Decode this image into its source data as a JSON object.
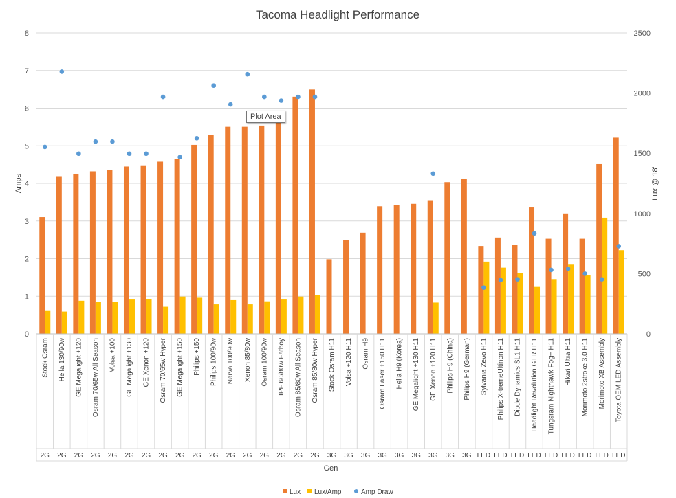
{
  "chart_data": {
    "type": "bar",
    "title": "Tacoma Headlight Performance",
    "xlabel": "Gen",
    "ylabel_left": "Amps",
    "ylabel_right": "Lux @ 18'",
    "ylim_left": [
      0,
      8
    ],
    "ylim_right": [
      0,
      2500
    ],
    "yticks_left": [
      "0",
      "1",
      "2",
      "3",
      "4",
      "5",
      "6",
      "7",
      "8"
    ],
    "yticks_right": [
      "0",
      "500",
      "1000",
      "1500",
      "2000",
      "2500"
    ],
    "grid": true,
    "legend_position": "bottom",
    "categories": [
      "Stock Osram",
      "Hella 130/90w",
      "GE Megalight +120",
      "Osram 70/65w All Season",
      "Volsa +100",
      "GE Megalight +130",
      "GE Xenon +120",
      "Osram 70/65w Hyper",
      "GE Megalight +150",
      "Philips +150",
      "Philips 100/90w",
      "Narva 100/90w",
      "Xenon 85/80w",
      "Osram 100/90w",
      "IPF 60/80w Fatboy",
      "Osram 85/80w All Season",
      "Osram 85/80w Hyper",
      "Stock Osram H11",
      "Volsa +120 H11",
      "Osram H9",
      "Osram Laser +150 H11",
      "Hella H9 (Korea)",
      "GE Megalight +130 H11",
      "GE Xenon +120 H11",
      "Philips H9 (China)",
      "Philips H9 (German)",
      "Sylvania Zevo H11",
      "Philips X-tremeUltinon H11",
      "Diode Dynamics SL1 H11",
      "Headlight Revolution GTR H11",
      "Tungsram Nighthawk Fog+ H11",
      "Hikari Ultra H11",
      "Morimoto 2stroke 3.0 H11",
      "Morimoto XB Assembly",
      "Toyota OEM LED Assembly"
    ],
    "groups": [
      "2G",
      "2G",
      "2G",
      "2G",
      "2G",
      "2G",
      "2G",
      "2G",
      "2G",
      "2G",
      "2G",
      "2G",
      "2G",
      "2G",
      "2G",
      "2G",
      "2G",
      "3G",
      "3G",
      "3G",
      "3G",
      "3G",
      "3G",
      "3G",
      "3G",
      "3G",
      "LED",
      "LED",
      "LED",
      "LED",
      "LED",
      "LED",
      "LED",
      "LED",
      "LED"
    ],
    "series": [
      {
        "name": "Lux",
        "axis": "right",
        "kind": "bar",
        "color": "#ED7D31",
        "values": [
          970,
          1310,
          1330,
          1350,
          1360,
          1390,
          1400,
          1430,
          1450,
          1570,
          1650,
          1720,
          1720,
          1730,
          1780,
          1970,
          2030,
          620,
          780,
          840,
          1060,
          1070,
          1080,
          1110,
          1260,
          1290,
          730,
          800,
          740,
          1050,
          790,
          1000,
          790,
          1410,
          1630
        ]
      },
      {
        "name": "Lux/Amp",
        "axis": "right",
        "kind": "bar",
        "color": "#FFC000",
        "values": [
          190,
          185,
          275,
          265,
          265,
          285,
          290,
          225,
          310,
          300,
          245,
          280,
          245,
          270,
          285,
          310,
          320,
          null,
          null,
          null,
          null,
          null,
          null,
          260,
          null,
          null,
          600,
          550,
          505,
          390,
          455,
          575,
          485,
          965,
          695
        ]
      },
      {
        "name": "Amp Draw",
        "axis": "left",
        "kind": "scatter",
        "color": "#5B9BD5",
        "values": [
          4.97,
          6.97,
          4.79,
          5.11,
          5.11,
          4.79,
          4.79,
          6.3,
          4.7,
          5.2,
          6.6,
          6.1,
          6.9,
          6.3,
          6.2,
          6.3,
          6.3,
          null,
          null,
          null,
          null,
          null,
          null,
          4.26,
          null,
          null,
          1.23,
          1.43,
          1.45,
          2.67,
          1.7,
          1.73,
          1.6,
          1.45,
          2.33
        ]
      }
    ]
  },
  "tooltip": {
    "label": "Plot Area"
  }
}
